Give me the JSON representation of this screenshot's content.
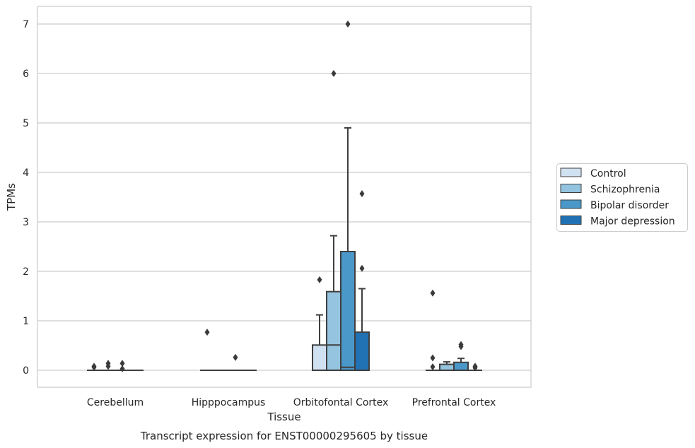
{
  "caption": "Transcript expression for ENST00000295605 by tissue",
  "chart_data": {
    "type": "box",
    "xlabel": "Tissue",
    "ylabel": "TPMs",
    "ylim": [
      -0.34,
      7.35
    ],
    "yticks": [
      0,
      1,
      2,
      3,
      4,
      5,
      6,
      7
    ],
    "grid": "horizontal",
    "legend_position": "right",
    "categories": [
      "Cerebellum",
      "Hipppocampus",
      "Orbitofontal Cortex",
      "Prefrontal Cortex"
    ],
    "series": [
      {
        "name": "Control",
        "color": "#d0e1f2",
        "boxes": [
          {
            "q1": 0,
            "median": 0,
            "q3": 0,
            "whisker_low": 0,
            "whisker_high": 0,
            "outliers": [
              0.08,
              0.06
            ]
          },
          {
            "q1": 0,
            "median": 0,
            "q3": 0,
            "whisker_low": 0,
            "whisker_high": 0,
            "outliers": [
              0.77
            ]
          },
          {
            "q1": 0,
            "median": 0,
            "q3": 0.51,
            "whisker_low": 0,
            "whisker_high": 1.12,
            "outliers": [
              1.83
            ]
          },
          {
            "q1": 0,
            "median": 0,
            "q3": 0,
            "whisker_low": 0,
            "whisker_high": 0,
            "outliers": [
              1.56,
              0.25,
              0.07
            ]
          }
        ]
      },
      {
        "name": "Schizophrenia",
        "color": "#94c4df",
        "boxes": [
          {
            "q1": 0,
            "median": 0,
            "q3": 0,
            "whisker_low": 0,
            "whisker_high": 0,
            "outliers": [
              0.14,
              0.08
            ]
          },
          {
            "q1": 0,
            "median": 0,
            "q3": 0,
            "whisker_low": 0,
            "whisker_high": 0,
            "outliers": []
          },
          {
            "q1": 0,
            "median": 0.51,
            "q3": 1.59,
            "whisker_low": 0,
            "whisker_high": 2.72,
            "outliers": [
              6.0
            ]
          },
          {
            "q1": 0,
            "median": 0,
            "q3": 0.12,
            "whisker_low": 0,
            "whisker_high": 0.17,
            "outliers": []
          }
        ]
      },
      {
        "name": "Bipolar disorder",
        "color": "#4a98c9",
        "boxes": [
          {
            "q1": 0,
            "median": 0,
            "q3": 0,
            "whisker_low": 0,
            "whisker_high": 0,
            "outliers": [
              0.14,
              0.03
            ]
          },
          {
            "q1": 0,
            "median": 0,
            "q3": 0,
            "whisker_low": 0,
            "whisker_high": 0,
            "outliers": [
              0.26
            ]
          },
          {
            "q1": 0,
            "median": 0.06,
            "q3": 2.4,
            "whisker_low": 0,
            "whisker_high": 4.9,
            "outliers": [
              7.0
            ]
          },
          {
            "q1": 0,
            "median": 0,
            "q3": 0.16,
            "whisker_low": 0,
            "whisker_high": 0.24,
            "outliers": [
              0.52,
              0.48
            ]
          }
        ]
      },
      {
        "name": "Major depression",
        "color": "#2171b5",
        "boxes": [
          {
            "q1": 0,
            "median": 0,
            "q3": 0,
            "whisker_low": 0,
            "whisker_high": 0,
            "outliers": []
          },
          {
            "q1": 0,
            "median": 0,
            "q3": 0,
            "whisker_low": 0,
            "whisker_high": 0,
            "outliers": []
          },
          {
            "q1": 0,
            "median": 0,
            "q3": 0.77,
            "whisker_low": 0,
            "whisker_high": 1.65,
            "outliers": [
              3.57,
              2.06
            ]
          },
          {
            "q1": 0,
            "median": 0,
            "q3": 0,
            "whisker_low": 0,
            "whisker_high": 0,
            "outliers": [
              0.08,
              0.05
            ]
          }
        ]
      }
    ]
  }
}
